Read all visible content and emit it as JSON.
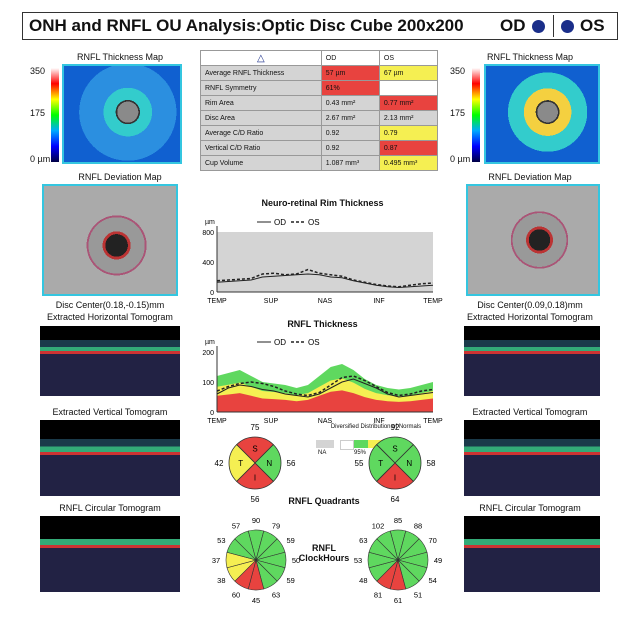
{
  "header": {
    "title": "ONH and RNFL OU Analysis:Optic Disc Cube 200x200",
    "od": "OD",
    "os": "OS"
  },
  "map": {
    "caption": "RNFL Thickness Map",
    "scale_top": "350",
    "scale_mid": "175",
    "scale_bot": "0 µm"
  },
  "deviation": {
    "caption": "RNFL Deviation Map",
    "od_center": "Disc Center(0.18,-0.15)mm",
    "os_center": "Disc Center(0.09,0.18)mm"
  },
  "tomograms": {
    "horizontal": "Extracted Horizontal Tomogram",
    "vertical": "Extracted Vertical Tomogram",
    "circular": "RNFL Circular Tomogram"
  },
  "table": {
    "warning_icon": "warning-icon",
    "col_od": "OD",
    "col_os": "OS",
    "rows": [
      {
        "label": "Average RNFL Thickness",
        "od": "57 µm",
        "os": "67 µm",
        "od_c": "red",
        "os_c": "yel"
      },
      {
        "label": "RNFL Symmetry",
        "od": "61%",
        "os": "",
        "od_c": "red",
        "os_c": "none"
      },
      {
        "label": "Rim Area",
        "od": "0.43 mm²",
        "os": "0.77 mm²",
        "od_c": "gry",
        "os_c": "red"
      },
      {
        "label": "Disc Area",
        "od": "2.67 mm²",
        "os": "2.13 mm²",
        "od_c": "gry",
        "os_c": "gry"
      },
      {
        "label": "Average C/D Ratio",
        "od": "0.92",
        "os": "0.79",
        "od_c": "gry",
        "os_c": "yel"
      },
      {
        "label": "Vertical C/D Ratio",
        "od": "0.92",
        "os": "0.87",
        "od_c": "gry",
        "os_c": "red"
      },
      {
        "label": "Cup Volume",
        "od": "1.087 mm³",
        "os": "0.495 mm³",
        "od_c": "gry",
        "os_c": "yel"
      }
    ]
  },
  "rim": {
    "title": "Neuro-retinal Rim Thickness",
    "unit": "µm",
    "legend_od": "OD",
    "legend_os": "OS",
    "yticks": [
      "800",
      "400",
      "0"
    ],
    "xticks": [
      "TEMP",
      "SUP",
      "NAS",
      "INF",
      "TEMP"
    ],
    "od": [
      130,
      140,
      150,
      160,
      200,
      210,
      220,
      230,
      240,
      230,
      200,
      190,
      150,
      120,
      90,
      70,
      60,
      70,
      80,
      90
    ],
    "os": [
      150,
      160,
      170,
      180,
      240,
      250,
      230,
      240,
      300,
      250,
      230,
      210,
      160,
      130,
      100,
      80,
      70,
      90,
      110,
      120
    ]
  },
  "rnfl": {
    "title": "RNFL Thickness",
    "unit": "µm",
    "legend_od": "OD",
    "legend_os": "OS",
    "yticks": [
      "200",
      "100",
      "0"
    ],
    "xticks": [
      "TEMP",
      "SUP",
      "NAS",
      "INF",
      "TEMP"
    ],
    "od": [
      60,
      80,
      90,
      85,
      75,
      70,
      60,
      55,
      50,
      60,
      80,
      100,
      110,
      95,
      80,
      60,
      50,
      55,
      60,
      65
    ],
    "os": [
      70,
      85,
      95,
      100,
      95,
      85,
      70,
      60,
      55,
      65,
      90,
      115,
      120,
      105,
      85,
      65,
      55,
      60,
      70,
      75
    ]
  },
  "distribution": {
    "title": "Diversified Distribution of Normals",
    "na": "NA",
    "p95": "95%",
    "p5": "5%",
    "p1": "1%"
  },
  "quadrants": {
    "label": "RNFL Quadrants",
    "od": {
      "S": "75",
      "N": "56",
      "I": "56",
      "T": "42",
      "S_c": "#e8433f",
      "N_c": "#5fd85f",
      "I_c": "#e8433f",
      "T_c": "#f5ef52"
    },
    "os": {
      "S": "92",
      "N": "58",
      "I": "64",
      "T": "55",
      "S_c": "#5fd85f",
      "N_c": "#5fd85f",
      "I_c": "#e8433f",
      "T_c": "#5fd85f"
    }
  },
  "clockhours": {
    "label": "RNFL ClockHours",
    "od": [
      "90",
      "79",
      "59",
      "50",
      "59",
      "63",
      "45",
      "60",
      "38",
      "37",
      "53",
      "57"
    ],
    "os": [
      "85",
      "88",
      "70",
      "49",
      "54",
      "51",
      "61",
      "81",
      "48",
      "53",
      "63",
      "102"
    ],
    "od_c": [
      "#5fd85f",
      "#5fd85f",
      "#5fd85f",
      "#5fd85f",
      "#5fd85f",
      "#5fd85f",
      "#e8433f",
      "#e8433f",
      "#f5ef52",
      "#f5ef52",
      "#5fd85f",
      "#5fd85f"
    ],
    "os_c": [
      "#5fd85f",
      "#5fd85f",
      "#5fd85f",
      "#5fd85f",
      "#5fd85f",
      "#5fd85f",
      "#e8433f",
      "#e8433f",
      "#5fd85f",
      "#5fd85f",
      "#5fd85f",
      "#5fd85f"
    ]
  },
  "colors": {
    "frame": "#34c6e0",
    "od_line": "#222222",
    "red": "#e8433f",
    "yellow": "#f5ef52",
    "green": "#5fd85f",
    "gray": "#d4d4d4"
  }
}
